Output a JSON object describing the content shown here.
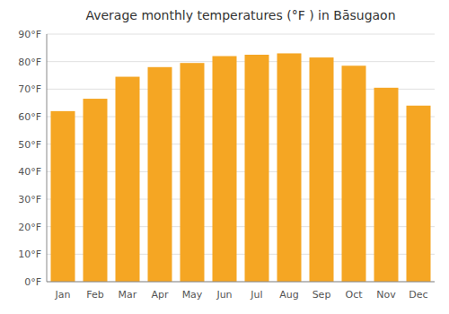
{
  "chart_data": {
    "type": "bar",
    "title": "Average monthly temperatures (°F ) in Bāsugaon",
    "categories": [
      "Jan",
      "Feb",
      "Mar",
      "Apr",
      "May",
      "Jun",
      "Jul",
      "Aug",
      "Sep",
      "Oct",
      "Nov",
      "Dec"
    ],
    "values": [
      62,
      66.5,
      74.5,
      78,
      79.5,
      82,
      82.5,
      83,
      81.5,
      78.5,
      70.5,
      64
    ],
    "color": "#F5A623",
    "ylim": [
      0,
      90
    ],
    "yticks": [
      {
        "value": 0,
        "label": "0°F"
      },
      {
        "value": 10,
        "label": "10°F"
      },
      {
        "value": 20,
        "label": "20°F"
      },
      {
        "value": 30,
        "label": "30°F"
      },
      {
        "value": 40,
        "label": "40°F"
      },
      {
        "value": 50,
        "label": "50°F"
      },
      {
        "value": 60,
        "label": "60°F"
      },
      {
        "value": 70,
        "label": "70°F"
      },
      {
        "value": 80,
        "label": "80°F"
      },
      {
        "value": 90,
        "label": "90°F"
      }
    ],
    "grid": true
  }
}
